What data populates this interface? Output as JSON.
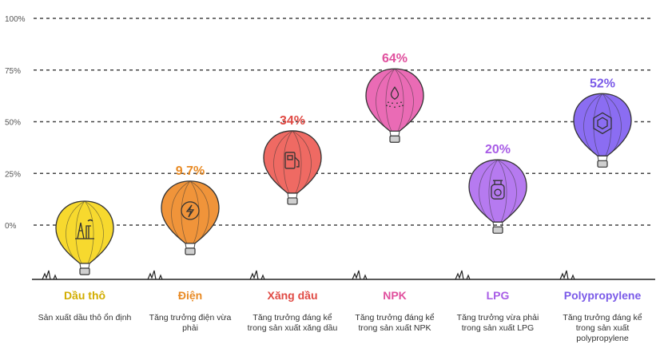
{
  "chart_data": {
    "type": "bar",
    "title": "",
    "xlabel": "",
    "ylabel": "",
    "ylim": [
      0,
      100
    ],
    "yticks": [
      "100%",
      "75%",
      "50%",
      "25%",
      "0%"
    ],
    "grid": true,
    "categories": [
      "Dầu thô",
      "Điện",
      "Xăng dầu",
      "NPK",
      "LPG",
      "Polypropylene"
    ],
    "values": [
      0,
      9.7,
      34,
      64,
      20,
      52
    ],
    "value_labels": [
      "",
      "9.7%",
      "34%",
      "64%",
      "20%",
      "52%"
    ],
    "descriptions": [
      "Sản xuất dầu thô ổn định",
      "Tăng trưởng điện vừa phải",
      "Tăng trưởng đáng kể trong sản xuất xăng dầu",
      "Tăng trưởng đáng kể trong sản xuất NPK",
      "Tăng trưởng vừa phải trong sản xuất LPG",
      "Tăng trưởng đáng kể trong sản xuất polypropylene"
    ],
    "colors": [
      "#f7d92e",
      "#f0943a",
      "#ef6a63",
      "#ea6bb5",
      "#b67af0",
      "#8b6df2"
    ],
    "label_colors": [
      "#d2ad00",
      "#e88a24",
      "#e04a44",
      "#e0509e",
      "#a85ce6",
      "#7a5ae8"
    ],
    "icons": [
      "oil-rig-icon",
      "lightning-cycle-icon",
      "fuel-pump-icon",
      "droplet-spray-icon",
      "gas-cylinder-icon",
      "hexagon-molecule-icon"
    ]
  }
}
